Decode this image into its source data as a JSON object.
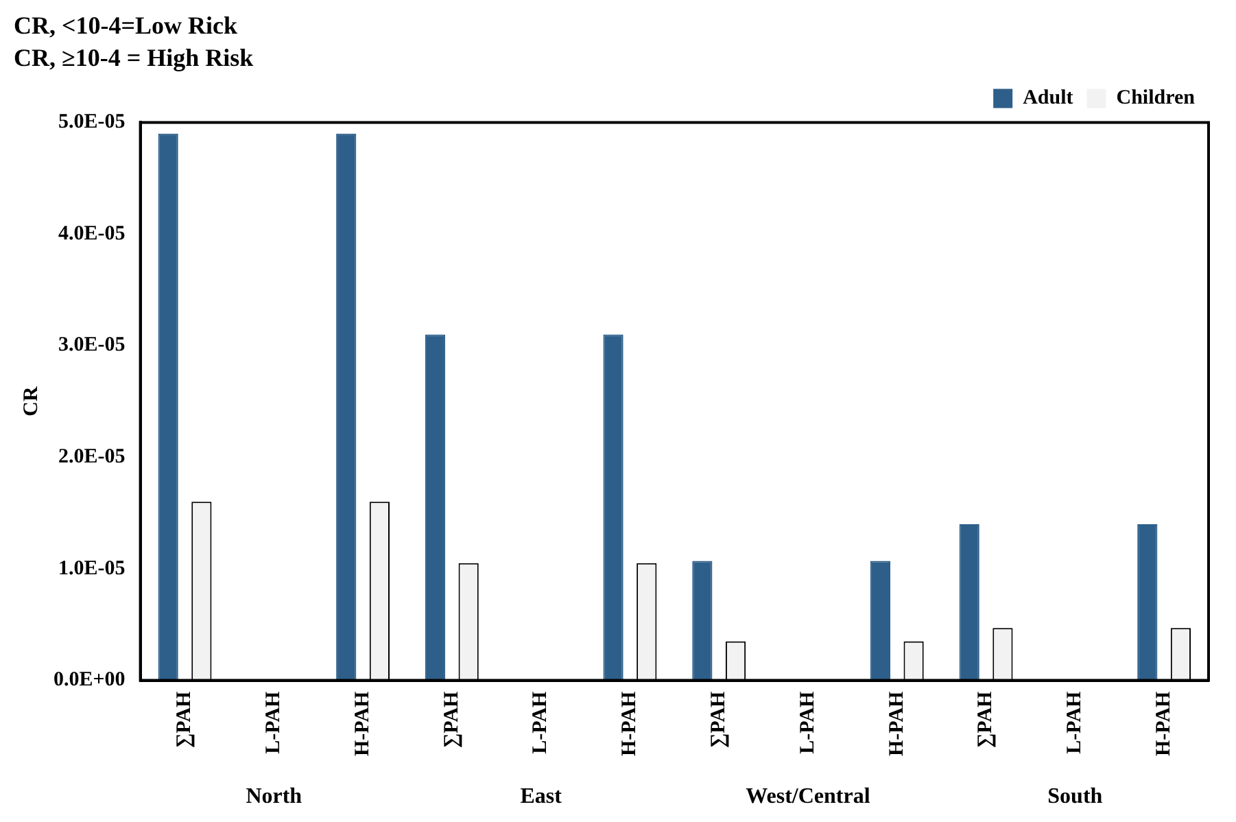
{
  "chart_data": {
    "type": "bar",
    "title": "CR, <10-4=Low Rick",
    "subtitle": "CR, ≥10-4 = High Risk",
    "ylabel": "CR",
    "categories": [
      "∑PAH",
      "L-PAH",
      "H-PAH",
      "∑PAH",
      "L-PAH",
      "H-PAH",
      "∑PAH",
      "L-PAH",
      "H-PAH",
      "∑PAH",
      "L-PAH",
      "H-PAH"
    ],
    "series": [
      {
        "name": "Adult",
        "color": "#2e5f8a",
        "values": [
          4.9e-05,
          0,
          4.9e-05,
          3.1e-05,
          0,
          3.1e-05,
          1.07e-05,
          0,
          1.07e-05,
          1.4e-05,
          0,
          1.4e-05
        ]
      },
      {
        "name": "Children",
        "color": "#f2f2f2",
        "values": [
          1.6e-05,
          0,
          1.6e-05,
          1.05e-05,
          0,
          1.05e-05,
          3.5e-06,
          0,
          3.5e-06,
          4.7e-06,
          0,
          4.7e-06
        ]
      }
    ],
    "ylim": [
      0,
      5e-05
    ],
    "yticks": [
      {
        "value": 0,
        "label": "0.0E+00"
      },
      {
        "value": 1e-05,
        "label": "1.0E-05"
      },
      {
        "value": 2e-05,
        "label": "2.0E-05"
      },
      {
        "value": 3e-05,
        "label": "3.0E-05"
      },
      {
        "value": 4e-05,
        "label": "4.0E-05"
      },
      {
        "value": 5e-05,
        "label": "5.0E-05"
      }
    ],
    "grid": false,
    "legend": "top right",
    "annotations": [
      "North",
      "East",
      "West/Central",
      "South"
    ]
  }
}
